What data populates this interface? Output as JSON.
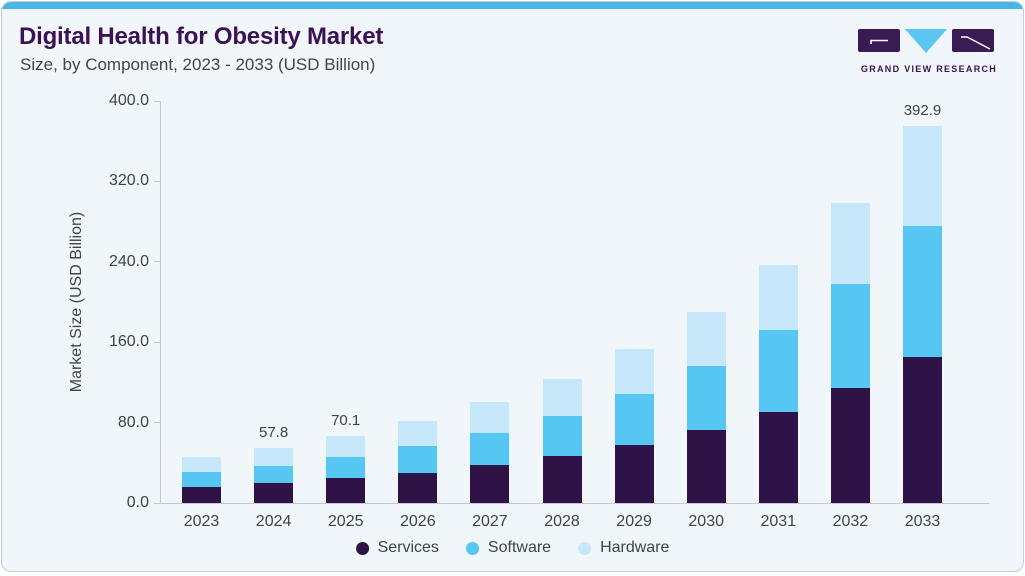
{
  "header": {
    "title": "Digital Health for Obesity Market",
    "subtitle": "Size, by Component, 2023 - 2033 (USD Billion)",
    "logo": {
      "wordmark": "GRAND VIEW RESEARCH"
    }
  },
  "colors": {
    "accent_strip": "#4ab6e8",
    "card_bg": "#f1f6fa",
    "card_border": "#c8ced5",
    "title_text": "#3b1254",
    "body_text": "#3f444b",
    "axis_line": "#c3c9d0",
    "services": "#2f1347",
    "software": "#56c6f2",
    "hardware": "#c6e8fa",
    "logo_purple": "#3b1b54",
    "logo_blue": "#5ac6f1"
  },
  "chart_data": {
    "type": "bar",
    "stacked": true,
    "title": "Digital Health for Obesity Market Size, by Component, 2023 - 2033 (USD Billion)",
    "categories": [
      "2023",
      "2024",
      "2025",
      "2026",
      "2027",
      "2028",
      "2029",
      "2030",
      "2031",
      "2032",
      "2033"
    ],
    "series": [
      {
        "name": "Services",
        "color": "#2f1347",
        "values": [
          17.0,
          21.3,
          25.9,
          31.7,
          39.3,
          48.5,
          60.5,
          75.6,
          94.8,
          120.2,
          151.6
        ]
      },
      {
        "name": "Software",
        "color": "#56c6f2",
        "values": [
          15.0,
          17.5,
          21.9,
          27.2,
          34.1,
          42.4,
          53.4,
          67.1,
          85.0,
          108.2,
          137.2
        ]
      },
      {
        "name": "Hardware",
        "color": "#c6e8fa",
        "values": [
          15.7,
          19.0,
          22.3,
          26.5,
          31.5,
          38.0,
          46.4,
          56.5,
          68.6,
          84.0,
          104.1
        ]
      }
    ],
    "totals": [
      47.7,
      57.8,
      70.1,
      85.4,
      104.9,
      128.9,
      160.3,
      199.2,
      248.4,
      312.4,
      392.9
    ],
    "bar_labels": {
      "2024": "57.8",
      "2025": "70.1",
      "2033": "392.9"
    },
    "xlabel": "",
    "ylabel": "Market Size (USD Billion)",
    "ylim": [
      0,
      400
    ],
    "ytick_labels": [
      "0.0",
      "80.0",
      "160.0",
      "240.0",
      "320.0",
      "400.0"
    ],
    "grid": false,
    "legend_position": "bottom"
  }
}
